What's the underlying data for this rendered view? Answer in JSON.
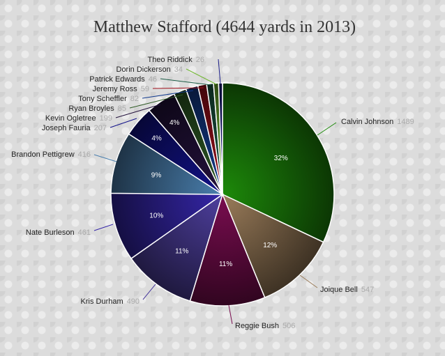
{
  "chart_data": {
    "type": "pie",
    "title": "Matthew Stafford (4644 yards in 2013)",
    "series": [
      {
        "name": "Calvin Johnson",
        "value": 1489,
        "pct": "32%",
        "color": "#1d8a0a"
      },
      {
        "name": "Joique Bell",
        "value": 547,
        "pct": "12%",
        "color": "#9a7c5a"
      },
      {
        "name": "Reggie Bush",
        "value": 506,
        "pct": "11%",
        "color": "#7a0d50"
      },
      {
        "name": "Kris Durham",
        "value": 490,
        "pct": "11%",
        "color": "#4e3f9e"
      },
      {
        "name": "Nate Burleson",
        "value": 461,
        "pct": "10%",
        "color": "#3526a8"
      },
      {
        "name": "Brandon Pettigrew",
        "value": 416,
        "pct": "9%",
        "color": "#4a7fae"
      },
      {
        "name": "Joseph Fauria",
        "value": 207,
        "pct": "4%",
        "color": "#12128a"
      },
      {
        "name": "Kevin Ogletree",
        "value": 199,
        "pct": "4%",
        "color": "#24123c"
      },
      {
        "name": "Ryan Broyles",
        "value": 85,
        "pct": "",
        "color": "#2e5a24"
      },
      {
        "name": "Tony Scheffler",
        "value": 82,
        "pct": "",
        "color": "#143c8e"
      },
      {
        "name": "Jeremy Ross",
        "value": 59,
        "pct": "",
        "color": "#a0101c"
      },
      {
        "name": "Patrick Edwards",
        "value": 46,
        "pct": "",
        "color": "#1c5c46"
      },
      {
        "name": "Dorin Dickerson",
        "value": 34,
        "pct": "",
        "color": "#72b832"
      },
      {
        "name": "Theo Riddick",
        "value": 26,
        "pct": "",
        "color": "#1c1f8a"
      }
    ]
  }
}
